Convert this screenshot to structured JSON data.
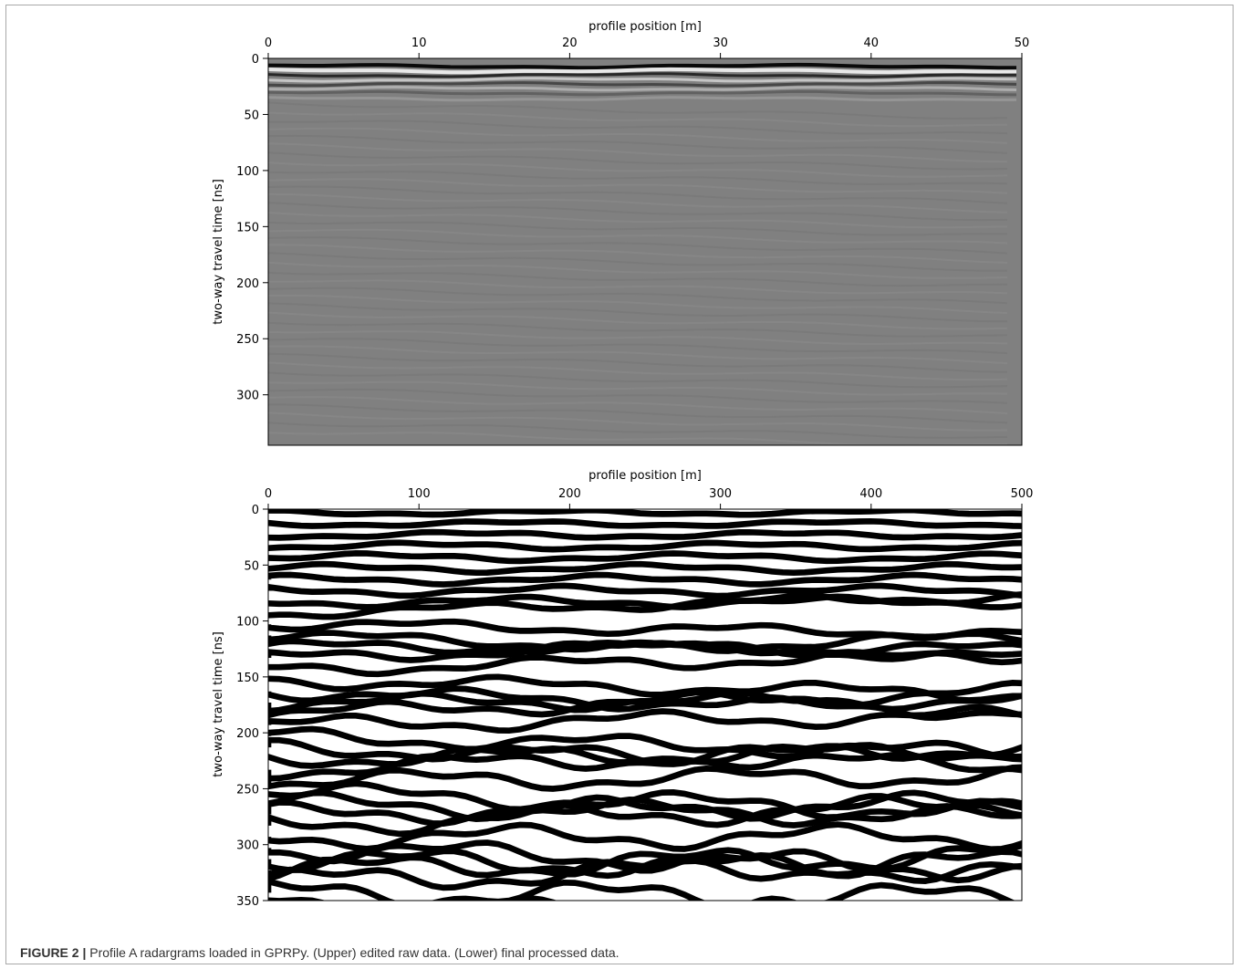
{
  "figure": {
    "label": "FIGURE 2 |",
    "caption": " Profile A radargrams loaded in GPRPy. (Upper) edited raw data. (Lower) final processed data."
  },
  "chart_data": [
    {
      "type": "heatmap",
      "panel": "Upper",
      "description_kind": "radargram",
      "xlabel": "profile position [m]",
      "ylabel": "two-way travel time [ns]",
      "xlim": [
        0,
        50
      ],
      "ylim": [
        0,
        345
      ],
      "y_inverted": true,
      "xticks": [
        "0",
        "10",
        "20",
        "30",
        "40",
        "50"
      ],
      "xtick_values": [
        0,
        10,
        20,
        30,
        40,
        50
      ],
      "yticks": [
        "0",
        "50",
        "100",
        "150",
        "200",
        "250",
        "300"
      ],
      "ytick_values": [
        0,
        50,
        100,
        150,
        200,
        250,
        300
      ],
      "x_axis_position": "top",
      "colormap": [
        "#000000",
        "#808080",
        "#ffffff"
      ],
      "background": "#808080",
      "reflector_times_ns": [
        7,
        11,
        15,
        19,
        23,
        27,
        31,
        36
      ],
      "grid": false
    },
    {
      "type": "heatmap",
      "panel": "Lower",
      "description_kind": "radargram",
      "xlabel": "profile position [m]",
      "ylabel": "two-way travel time [ns]",
      "xlim": [
        0,
        500
      ],
      "ylim": [
        0,
        350
      ],
      "y_inverted": true,
      "xticks": [
        "0",
        "100",
        "200",
        "300",
        "400",
        "500"
      ],
      "xtick_values": [
        0,
        100,
        200,
        300,
        400,
        500
      ],
      "yticks": [
        "0",
        "50",
        "100",
        "150",
        "200",
        "250",
        "300",
        "350"
      ],
      "ytick_values": [
        0,
        50,
        100,
        150,
        200,
        250,
        300,
        350
      ],
      "x_axis_position": "top",
      "colormap": [
        "#000000",
        "#808080",
        "#ffffff"
      ],
      "background": "#ffffff",
      "reflector_period_ns": 10,
      "grid": false
    }
  ]
}
